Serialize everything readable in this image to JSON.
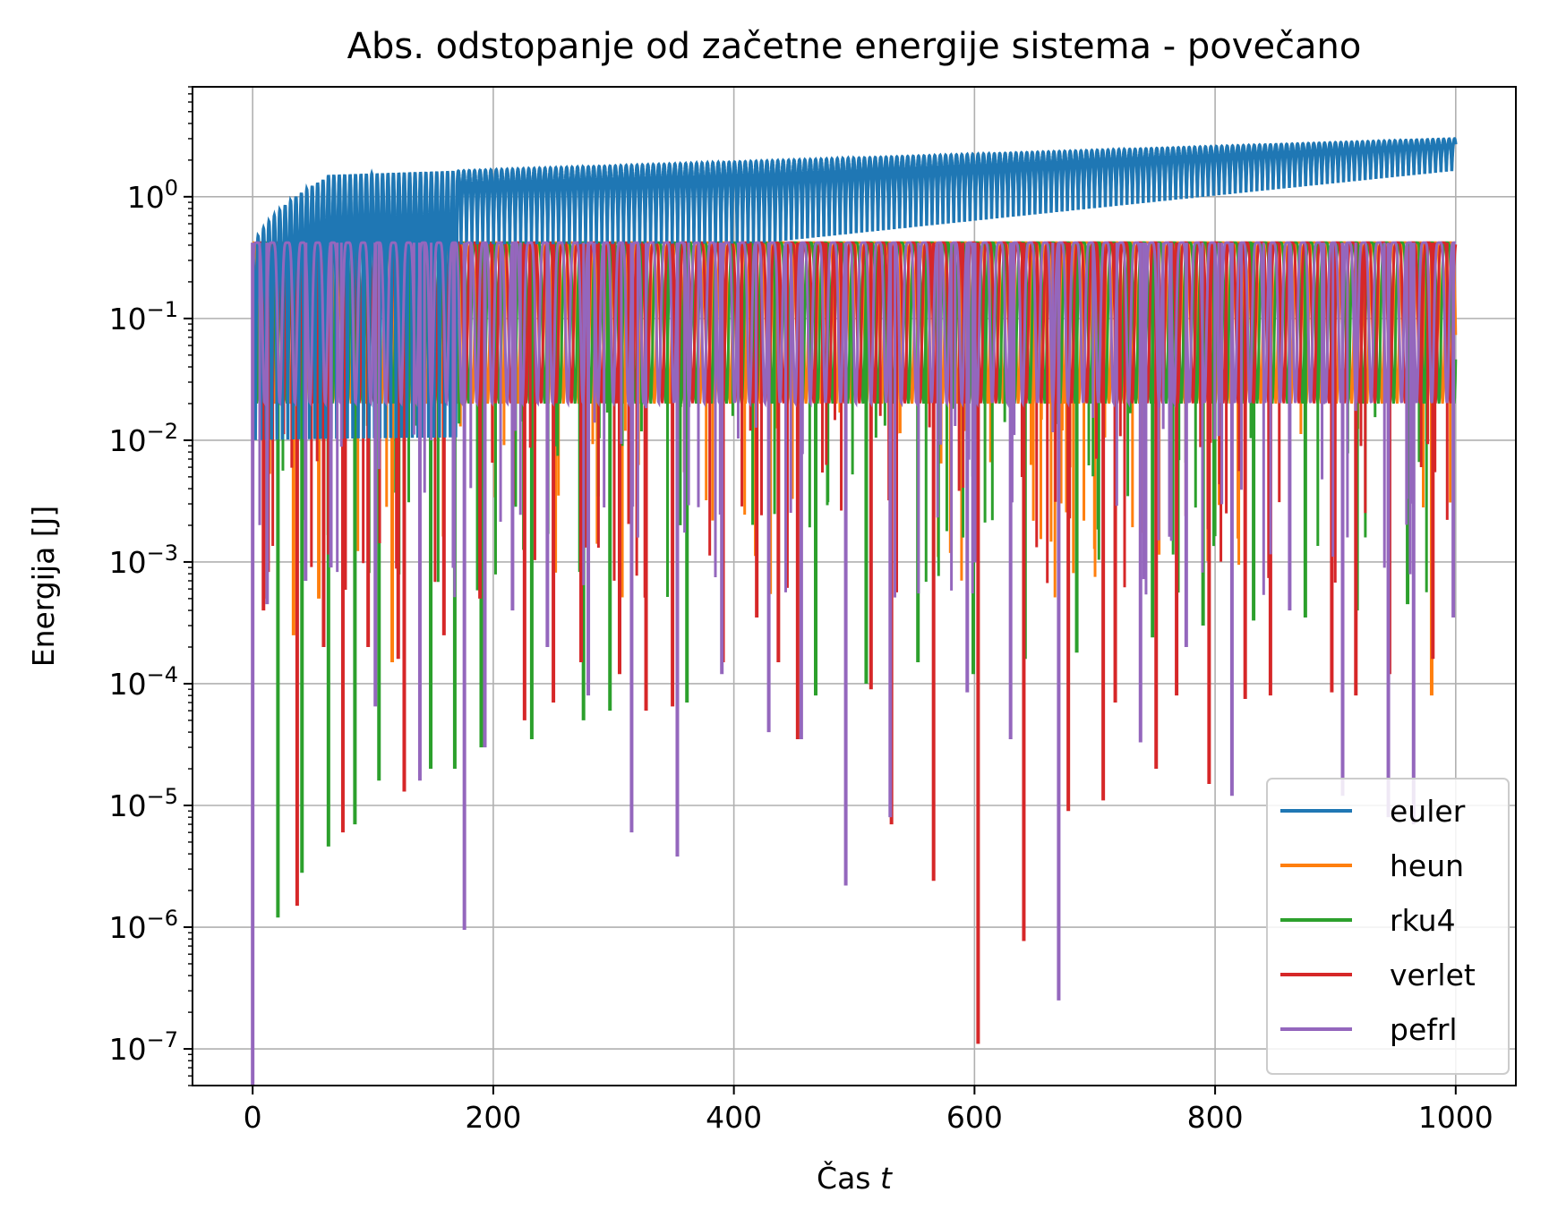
{
  "chart_data": {
    "type": "line",
    "title": "Abs. odstopanje od začetne energije sistema - povečano",
    "xlabel": "Čas t",
    "xlabel_prefix": "Čas",
    "xlabel_var": "t",
    "ylabel": "Energija [J]",
    "xscale": "linear",
    "yscale": "log",
    "xlim": [
      -50,
      1050
    ],
    "ylim": [
      5e-08,
      8
    ],
    "x_ticks": [
      0,
      200,
      400,
      600,
      800,
      1000
    ],
    "x_tick_labels": [
      "0",
      "200",
      "400",
      "600",
      "800",
      "1000"
    ],
    "y_tick_exponents": [
      "-7",
      "-6",
      "-5",
      "-4",
      "-3",
      "-2",
      "-1",
      "0"
    ],
    "y_tick_base": "10",
    "grid": true,
    "legend_position": "lower right",
    "series": [
      {
        "name": "euler",
        "color": "#1f77b4",
        "description_points": {
          "t_end": 1000,
          "upper_start": 0.4,
          "upper_end": 3.0,
          "lower_end": 1.6,
          "period": 4.5
        }
      },
      {
        "name": "heun",
        "color": "#ff7f0e",
        "upper": 0.42,
        "period": 12.6
      },
      {
        "name": "rku4",
        "color": "#2ca02c",
        "upper": 0.42,
        "period": 12.6
      },
      {
        "name": "verlet",
        "color": "#d62728",
        "upper": 0.42,
        "period": 12.6
      },
      {
        "name": "pefrl",
        "color": "#9467bd",
        "upper": 0.42,
        "period": 12.6
      }
    ],
    "minima_samples": {
      "heun": [
        [
          10,
          0.0005
        ],
        [
          34,
          0.00025
        ],
        [
          55,
          0.0005
        ],
        [
          116,
          0.00015
        ],
        [
          980,
          8e-05
        ]
      ],
      "rku4": [
        [
          21,
          1.2e-06
        ],
        [
          41,
          2.8e-06
        ],
        [
          63,
          4.6e-06
        ],
        [
          85,
          7e-06
        ],
        [
          105,
          1.6e-05
        ],
        [
          148,
          2e-05
        ],
        [
          168,
          2e-05
        ],
        [
          190,
          3e-05
        ],
        [
          232,
          3.5e-05
        ],
        [
          275,
          5e-05
        ],
        [
          297,
          6e-05
        ],
        [
          361,
          7e-05
        ],
        [
          468,
          8e-05
        ],
        [
          510,
          0.0001
        ],
        [
          553,
          0.00015
        ],
        [
          599,
          0.00012
        ],
        [
          642,
          0.00016
        ],
        [
          685,
          0.00018
        ],
        [
          748,
          0.00024
        ],
        [
          790,
          0.0003
        ],
        [
          832,
          0.00033
        ],
        [
          875,
          0.00035
        ],
        [
          918,
          0.0004
        ],
        [
          960,
          0.00045
        ]
      ],
      "verlet": [
        [
          9,
          0.0004
        ],
        [
          37,
          1.5e-06
        ],
        [
          59,
          0.0002
        ],
        [
          75,
          6e-06
        ],
        [
          96,
          0.0002
        ],
        [
          121,
          0.00016
        ],
        [
          126,
          1.3e-05
        ],
        [
          159,
          0.00025
        ],
        [
          189,
          0.0005
        ],
        [
          226,
          5e-05
        ],
        [
          250,
          7e-05
        ],
        [
          273,
          0.00015
        ],
        [
          305,
          0.00012
        ],
        [
          327,
          6e-05
        ],
        [
          349,
          6.5e-05
        ],
        [
          391,
          0.00015
        ],
        [
          419,
          0.00035
        ],
        [
          437,
          0.00015
        ],
        [
          453,
          3.5e-05
        ],
        [
          514,
          9e-05
        ],
        [
          531,
          7e-06
        ],
        [
          566,
          2.4e-06
        ],
        [
          603,
          1.1e-07
        ],
        [
          641,
          7.7e-07
        ],
        [
          678,
          9e-06
        ],
        [
          707,
          1.1e-05
        ],
        [
          717,
          7e-05
        ],
        [
          751,
          2e-05
        ],
        [
          768,
          8e-05
        ],
        [
          795,
          1.5e-05
        ],
        [
          825,
          7.5e-05
        ],
        [
          846,
          8e-05
        ],
        [
          897,
          8.5e-05
        ],
        [
          917,
          8e-05
        ],
        [
          945,
          0.00012
        ],
        [
          981,
          0.00016
        ]
      ],
      "pefrl": [
        [
          0,
          5e-08
        ],
        [
          12,
          0.00045
        ],
        [
          44,
          0.0007
        ],
        [
          65,
          0.0009
        ],
        [
          102,
          6.5e-05
        ],
        [
          139,
          1.6e-05
        ],
        [
          176,
          9.5e-07
        ],
        [
          193,
          3e-05
        ],
        [
          216,
          0.0004
        ],
        [
          245,
          0.0002
        ],
        [
          279,
          8e-05
        ],
        [
          315,
          6e-06
        ],
        [
          353,
          3.8e-06
        ],
        [
          390,
          0.00012
        ],
        [
          429,
          4e-05
        ],
        [
          456,
          3.5e-05
        ],
        [
          493,
          2.2e-06
        ],
        [
          530,
          8e-06
        ],
        [
          594,
          8.5e-05
        ],
        [
          630,
          3.5e-05
        ],
        [
          670,
          2.5e-07
        ],
        [
          738,
          3.3e-05
        ],
        [
          776,
          0.0002
        ],
        [
          814,
          1.2e-05
        ],
        [
          862,
          0.0004
        ],
        [
          906,
          1.2e-05
        ],
        [
          944,
          8e-06
        ],
        [
          965,
          7e-06
        ],
        [
          998,
          0.00035
        ]
      ]
    }
  }
}
